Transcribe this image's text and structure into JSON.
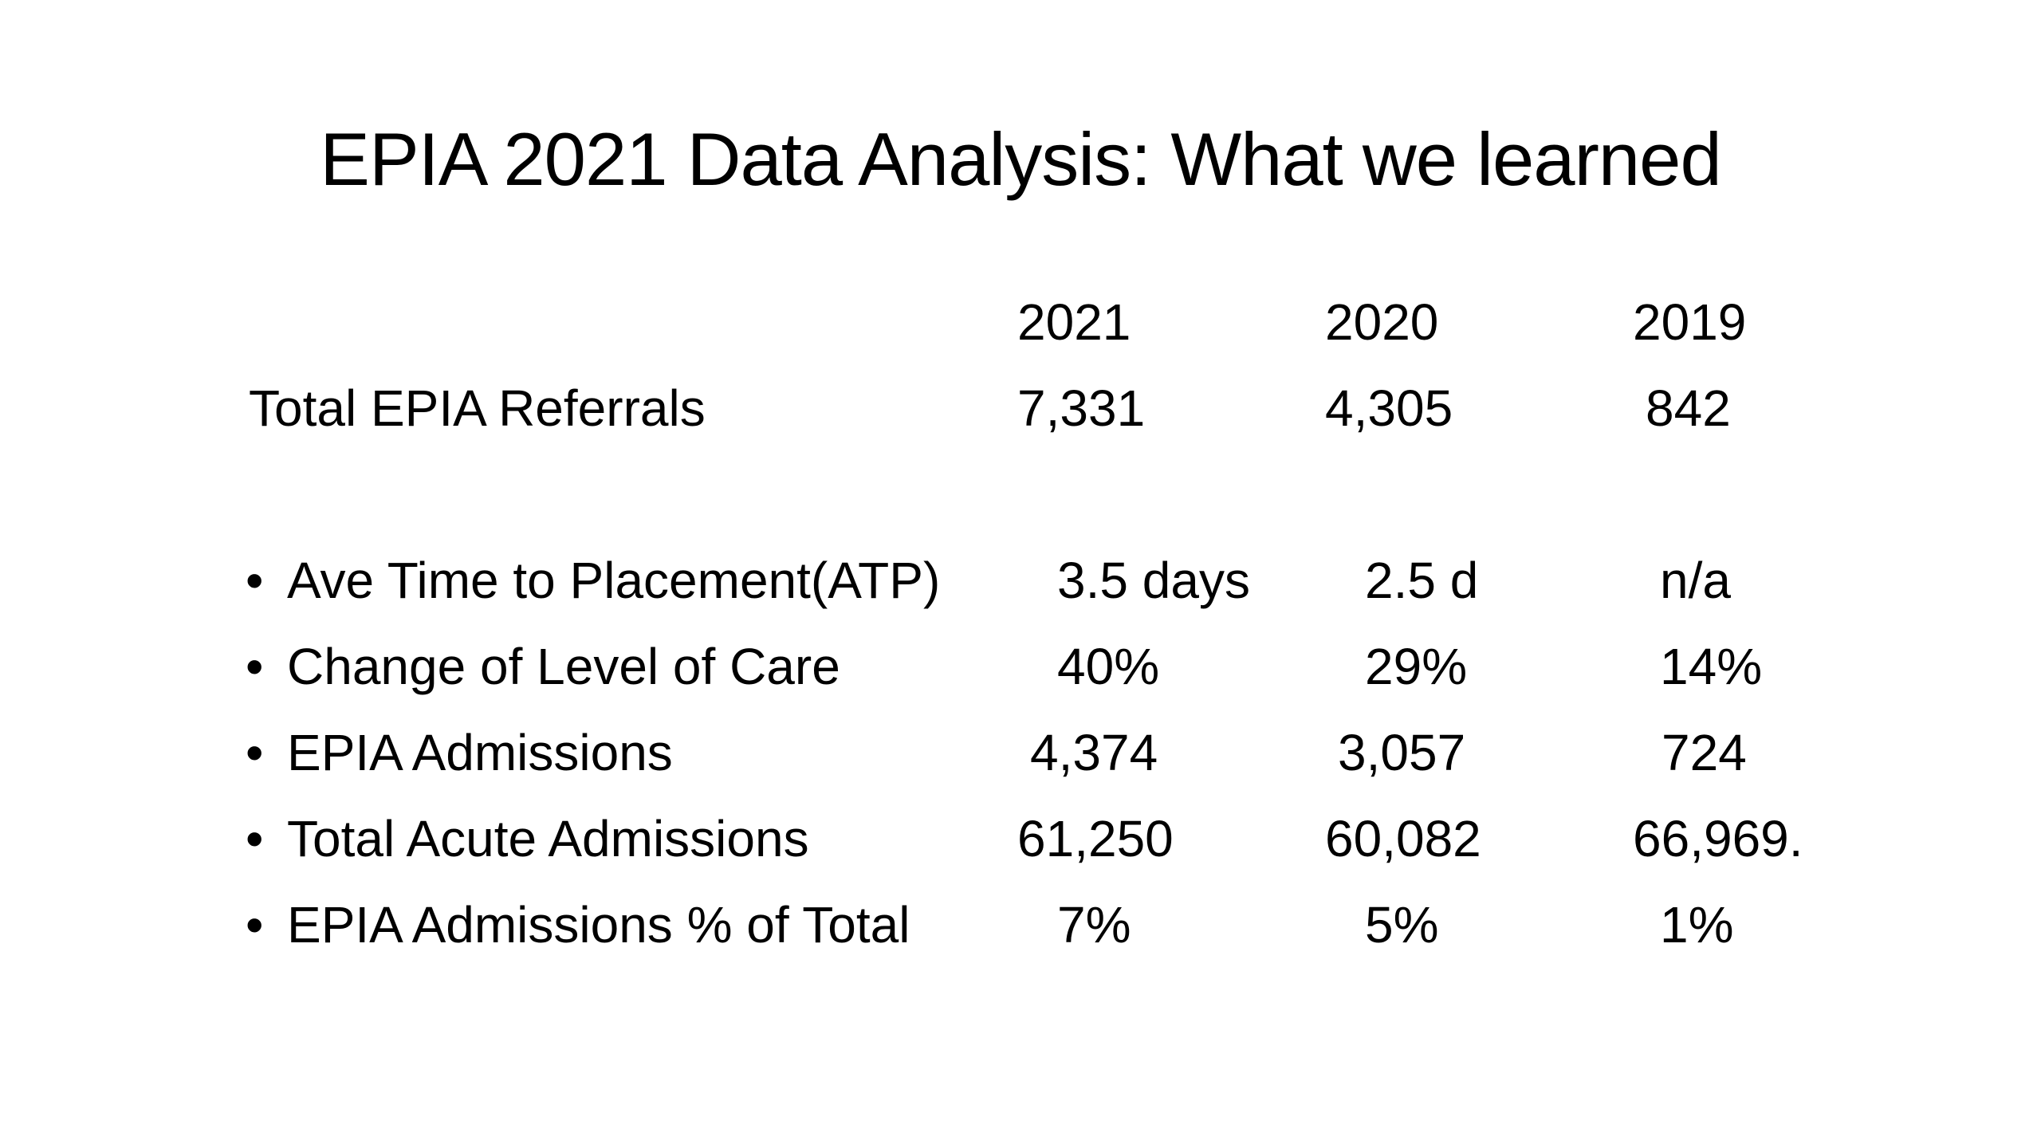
{
  "slide": {
    "title": "EPIA 2021 Data Analysis: What we learned"
  },
  "table": {
    "years": [
      "2021",
      "2020",
      "2019"
    ],
    "summary_row": {
      "label": "Total EPIA Referrals",
      "values": [
        "7,331",
        "4,305",
        "842"
      ]
    },
    "bullet_rows": [
      {
        "label": "Ave Time to Placement(ATP)",
        "values": [
          "3.5 days",
          "2.5 d",
          "n/a"
        ]
      },
      {
        "label": "Change of Level of Care",
        "values": [
          "40%",
          "29%",
          "14%"
        ]
      },
      {
        "label": "EPIA Admissions",
        "values": [
          "4,374",
          "3,057",
          "724"
        ]
      },
      {
        "label": "Total Acute Admissions",
        "values": [
          "61,250",
          "60,082",
          "66,969."
        ]
      },
      {
        "label": "EPIA Admissions % of Total",
        "values": [
          "7%",
          "5%",
          "1%"
        ]
      }
    ],
    "bullet_char": "•"
  }
}
